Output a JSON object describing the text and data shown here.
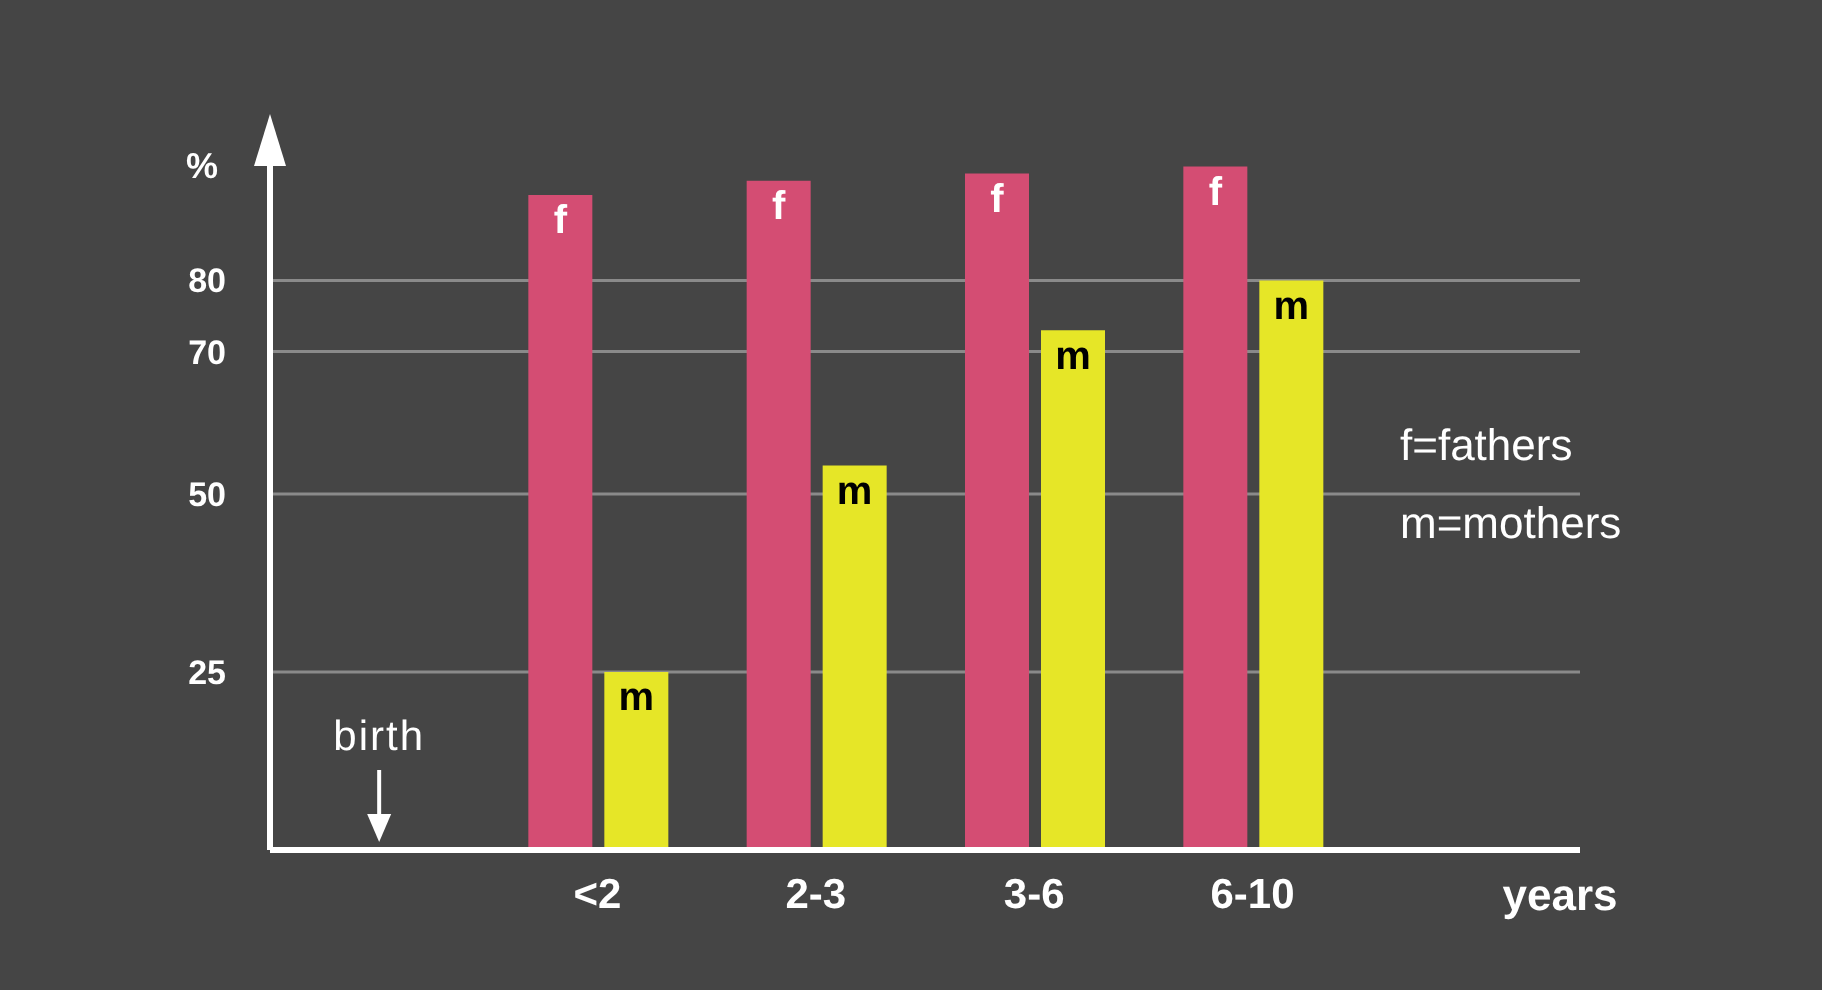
{
  "chart_data": {
    "type": "bar",
    "ylabel": "%",
    "xlabel": "years",
    "categories": [
      null,
      "<2",
      "2-3",
      "3-6",
      "6-10",
      null
    ],
    "series": [
      {
        "name": "f",
        "color": "#d44d73",
        "values": [
          null,
          92,
          94,
          95,
          96,
          null
        ]
      },
      {
        "name": "m",
        "color": "#e6e627",
        "values": [
          null,
          25,
          54,
          73,
          80,
          null
        ]
      }
    ],
    "ylim": [
      0,
      100
    ],
    "yticks": [
      25,
      50,
      70,
      80
    ],
    "grid": "y",
    "annotations": [
      "birth",
      "f=fathers",
      "m=mothers"
    ]
  }
}
